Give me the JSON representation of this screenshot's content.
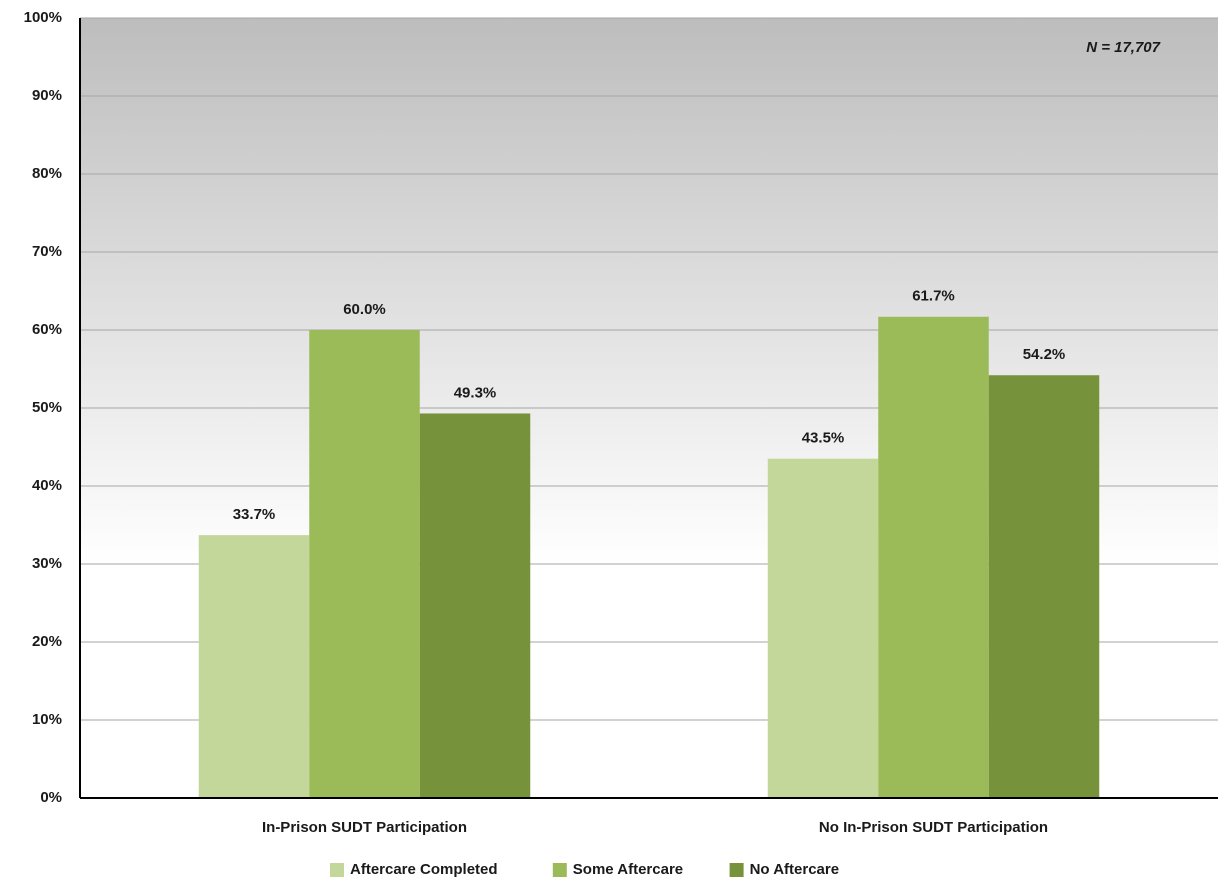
{
  "chart_data": {
    "type": "bar",
    "annotation": "N = 17,707",
    "categories": [
      "In-Prison SUDT Participation",
      "No In-Prison SUDT Participation"
    ],
    "series": [
      {
        "name": "Aftercare Completed",
        "color": "#c4d79b",
        "values": [
          33.7,
          43.5
        ],
        "value_labels": [
          "33.7%",
          "43.5%"
        ]
      },
      {
        "name": "Some Aftercare",
        "color": "#9bbb59",
        "values": [
          60.0,
          61.7
        ],
        "value_labels": [
          "60.0%",
          "61.7%"
        ]
      },
      {
        "name": "No Aftercare",
        "color": "#76933c",
        "values": [
          49.3,
          54.2
        ],
        "value_labels": [
          "49.3%",
          "54.2%"
        ]
      }
    ],
    "ylim": [
      0,
      100
    ],
    "yticks": [
      {
        "value": 0,
        "label": "0%"
      },
      {
        "value": 10,
        "label": "10%"
      },
      {
        "value": 20,
        "label": "20%"
      },
      {
        "value": 30,
        "label": "30%"
      },
      {
        "value": 40,
        "label": "40%"
      },
      {
        "value": 50,
        "label": "50%"
      },
      {
        "value": 60,
        "label": "60%"
      },
      {
        "value": 70,
        "label": "70%"
      },
      {
        "value": 80,
        "label": "80%"
      },
      {
        "value": 90,
        "label": "90%"
      },
      {
        "value": 100,
        "label": "100%"
      }
    ],
    "grid": true,
    "legend": "bottom"
  }
}
